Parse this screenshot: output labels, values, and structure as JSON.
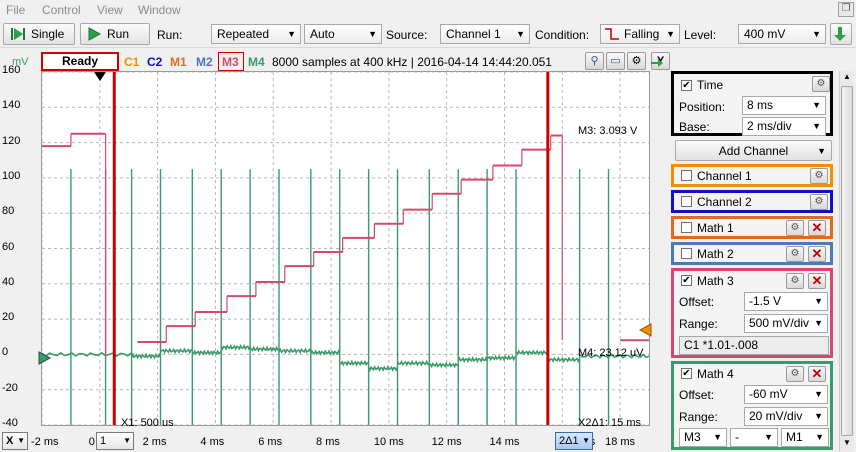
{
  "menu": {
    "file": "File",
    "control": "Control",
    "view": "View",
    "window": "Window"
  },
  "toolbar": {
    "single_label": "Single",
    "run_label": "Run",
    "run_mode_label": "Run:",
    "run_mode_value": "Repeated",
    "trigger_mode_value": "Auto",
    "source_label": "Source:",
    "source_value": "Channel 1",
    "condition_label": "Condition:",
    "condition_value": "Falling",
    "level_label": "Level:",
    "level_value": "400 mV"
  },
  "plot_header": {
    "status": "Ready",
    "channels": [
      "C1",
      "C2",
      "M1",
      "M2",
      "M3",
      "M4"
    ],
    "sample_info": "8000 samples at 400 kHz | 2016-04-14 14:44:20.051",
    "y_button": "Y"
  },
  "colors": {
    "c1": "#f09000",
    "c2": "#1010c8",
    "m1": "#e06a20",
    "m2": "#4a7ab8",
    "m3": "#d24a6e",
    "m4": "#3a9a6a",
    "cursor": "#d00000"
  },
  "plot": {
    "y_unit": "mV",
    "y_ticks": [
      "160",
      "140",
      "120",
      "100",
      "80",
      "60",
      "40",
      "20",
      "0",
      "-20",
      "-40"
    ],
    "x_ticks": [
      "-2 ms",
      "0",
      "2 ms",
      "4 ms",
      "6 ms",
      "8 ms",
      "10 ms",
      "12 ms",
      "14 ms",
      "16 ms",
      "18 ms"
    ],
    "cursor1_label": "X1: 500 us",
    "cursor2_label": "X2Δ1: 15 ms",
    "m3_readout": "M3: 3.093 V",
    "m4_readout": "M4: 23.12 uV"
  },
  "chart_data": {
    "type": "line",
    "x_unit": "ms",
    "y_unit": "mV",
    "xlim": [
      -2,
      19
    ],
    "ylim": [
      -40,
      160
    ],
    "grid": true,
    "cursors_ms": [
      0.5,
      15.5
    ],
    "series": [
      {
        "name": "M3",
        "steps": [
          {
            "x0": -2,
            "x1": -1,
            "y": 118
          },
          {
            "x0": -1,
            "x1": 0.2,
            "y": 125
          },
          {
            "x0": 1.3,
            "x1": 2.3,
            "y": 7
          },
          {
            "x0": 2.3,
            "x1": 3.3,
            "y": 16
          },
          {
            "x0": 3.3,
            "x1": 4.4,
            "y": 24
          },
          {
            "x0": 4.4,
            "x1": 5.4,
            "y": 33
          },
          {
            "x0": 5.4,
            "x1": 6.4,
            "y": 41
          },
          {
            "x0": 6.4,
            "x1": 7.4,
            "y": 50
          },
          {
            "x0": 7.4,
            "x1": 8.4,
            "y": 58
          },
          {
            "x0": 8.4,
            "x1": 9.5,
            "y": 66
          },
          {
            "x0": 9.5,
            "x1": 10.5,
            "y": 74
          },
          {
            "x0": 10.5,
            "x1": 11.5,
            "y": 82
          },
          {
            "x0": 11.5,
            "x1": 12.5,
            "y": 91
          },
          {
            "x0": 12.5,
            "x1": 13.6,
            "y": 99
          },
          {
            "x0": 13.6,
            "x1": 14.6,
            "y": 107
          },
          {
            "x0": 14.6,
            "x1": 15.6,
            "y": 116
          },
          {
            "x0": 15.6,
            "x1": 16.0,
            "y": 124
          },
          {
            "x0": 18.0,
            "x1": 19.0,
            "y": 8
          }
        ]
      },
      {
        "name": "M4",
        "levels": [
          {
            "x0": -2,
            "x1": 1.1,
            "y": 0
          },
          {
            "x0": 1.1,
            "x1": 2.1,
            "y": -1
          },
          {
            "x0": 2.1,
            "x1": 3.2,
            "y": 2
          },
          {
            "x0": 3.2,
            "x1": 4.2,
            "y": 1
          },
          {
            "x0": 4.2,
            "x1": 5.2,
            "y": 4
          },
          {
            "x0": 5.2,
            "x1": 6.2,
            "y": 3
          },
          {
            "x0": 6.2,
            "x1": 7.3,
            "y": 2
          },
          {
            "x0": 7.3,
            "x1": 8.3,
            "y": 1
          },
          {
            "x0": 8.3,
            "x1": 9.3,
            "y": -5
          },
          {
            "x0": 9.3,
            "x1": 10.3,
            "y": -8
          },
          {
            "x0": 10.3,
            "x1": 11.4,
            "y": -5
          },
          {
            "x0": 11.4,
            "x1": 12.4,
            "y": -6
          },
          {
            "x0": 12.4,
            "x1": 13.4,
            "y": -3
          },
          {
            "x0": 13.4,
            "x1": 14.4,
            "y": -2
          },
          {
            "x0": 14.4,
            "x1": 15.5,
            "y": 1
          },
          {
            "x0": 15.5,
            "x1": 16.6,
            "y": -3
          },
          {
            "x0": 16.6,
            "x1": 19.0,
            "y": -1
          }
        ],
        "spikes_ms": [
          -1,
          0.2,
          1.1,
          2.1,
          3.2,
          4.2,
          5.2,
          6.2,
          7.3,
          8.3,
          9.3,
          10.3,
          11.4,
          12.4,
          13.4,
          14.4,
          15.5,
          16.6,
          17.6
        ],
        "spike_peak": 105,
        "spike_trough": -40
      }
    ]
  },
  "bottom_bar": {
    "x_axis_combo": "X",
    "cursor_combo": "1",
    "delta_combo": "2Δ1"
  },
  "panel": {
    "time": {
      "label": "Time",
      "checked": "✔",
      "position_label": "Position:",
      "position_value": "8 ms",
      "base_label": "Base:",
      "base_value": "2 ms/div"
    },
    "add_channel_label": "Add Channel",
    "channel1": {
      "label": "Channel 1"
    },
    "channel2": {
      "label": "Channel 2"
    },
    "math1": {
      "label": "Math 1"
    },
    "math2": {
      "label": "Math 2"
    },
    "math3": {
      "label": "Math 3",
      "checked": "✔",
      "offset_label": "Offset:",
      "offset_value": "-1.5 V",
      "range_label": "Range:",
      "range_value": "500 mV/div",
      "expression": "C1 *1.01-.008"
    },
    "math4": {
      "label": "Math 4",
      "checked": "✔",
      "offset_label": "Offset:",
      "offset_value": "-60 mV",
      "range_label": "Range:",
      "range_value": "20 mV/div",
      "op_a": "M3",
      "op": "-",
      "op_b": "M1"
    }
  }
}
